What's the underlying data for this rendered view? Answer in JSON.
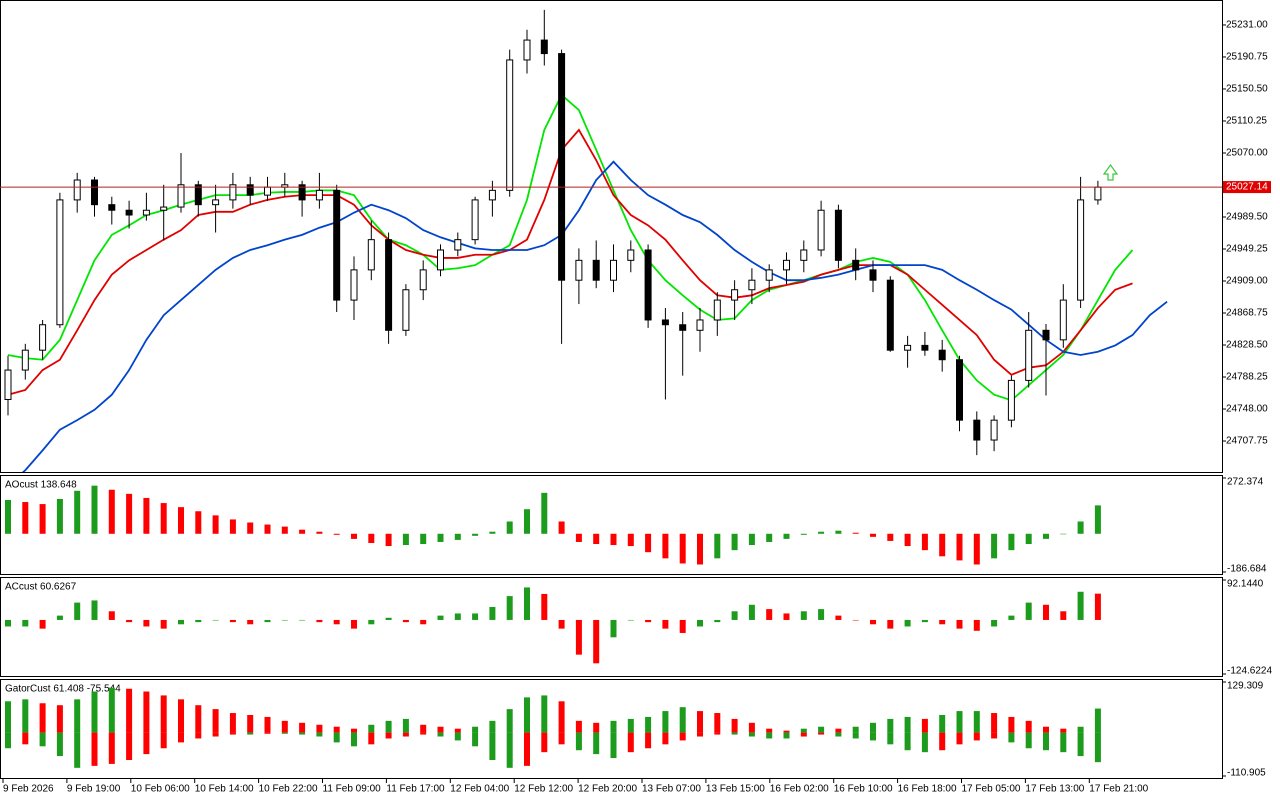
{
  "price_chart": {
    "type": "candlestick",
    "candles": [
      [
        24760,
        24815,
        24740,
        24797
      ],
      [
        24797,
        24830,
        24785,
        24822
      ],
      [
        24822,
        24860,
        24810,
        24854
      ],
      [
        24854,
        25020,
        24850,
        25011
      ],
      [
        25011,
        25045,
        24995,
        25036
      ],
      [
        25036,
        25040,
        24990,
        25005
      ],
      [
        25005,
        25015,
        24980,
        24998
      ],
      [
        24998,
        25010,
        24975,
        24992
      ],
      [
        24992,
        25020,
        24985,
        24998
      ],
      [
        24998,
        25030,
        24960,
        25002
      ],
      [
        25002,
        25070,
        24995,
        25030
      ],
      [
        25030,
        25035,
        24990,
        25005
      ],
      [
        25005,
        25030,
        24970,
        25011
      ],
      [
        25011,
        25045,
        25000,
        25030
      ],
      [
        25030,
        25040,
        25005,
        25017
      ],
      [
        25017,
        25040,
        25010,
        25027
      ],
      [
        25027,
        25045,
        25015,
        25030
      ],
      [
        25030,
        25035,
        24990,
        25011
      ],
      [
        25011,
        25045,
        25000,
        25023
      ],
      [
        25023,
        25030,
        24870,
        24885
      ],
      [
        24885,
        24940,
        24860,
        24923
      ],
      [
        24923,
        24985,
        24910,
        24961
      ],
      [
        24961,
        24970,
        24830,
        24847
      ],
      [
        24847,
        24905,
        24840,
        24898
      ],
      [
        24898,
        24935,
        24885,
        24923
      ],
      [
        24923,
        24955,
        24915,
        24948
      ],
      [
        24948,
        24970,
        24940,
        24961
      ],
      [
        24961,
        25015,
        24955,
        25011
      ],
      [
        25011,
        25035,
        24990,
        25023
      ],
      [
        25023,
        25200,
        25015,
        25187
      ],
      [
        25187,
        25225,
        25170,
        25212
      ],
      [
        25212,
        25250,
        25180,
        25195
      ],
      [
        25195,
        25200,
        24830,
        24910
      ],
      [
        24910,
        24950,
        24880,
        24935
      ],
      [
        24935,
        24960,
        24900,
        24910
      ],
      [
        24910,
        24955,
        24895,
        24935
      ],
      [
        24935,
        24960,
        24920,
        24948
      ],
      [
        24948,
        24955,
        24850,
        24860
      ],
      [
        24860,
        24875,
        24760,
        24854
      ],
      [
        24854,
        24870,
        24790,
        24847
      ],
      [
        24847,
        24875,
        24820,
        24860
      ],
      [
        24860,
        24895,
        24840,
        24885
      ],
      [
        24885,
        24910,
        24860,
        24898
      ],
      [
        24898,
        24925,
        24880,
        24910
      ],
      [
        24910,
        24930,
        24895,
        24923
      ],
      [
        24923,
        24945,
        24905,
        24935
      ],
      [
        24935,
        24960,
        24920,
        24948
      ],
      [
        24948,
        25010,
        24940,
        24998
      ],
      [
        24998,
        25005,
        24925,
        24935
      ],
      [
        24935,
        24950,
        24910,
        24923
      ],
      [
        24923,
        24935,
        24895,
        24910
      ],
      [
        24910,
        24915,
        24820,
        24822
      ],
      [
        24822,
        24840,
        24800,
        24828
      ],
      [
        24828,
        24845,
        24815,
        24822
      ],
      [
        24822,
        24835,
        24795,
        24810
      ],
      [
        24810,
        24815,
        24720,
        24734
      ],
      [
        24734,
        24745,
        24690,
        24709
      ],
      [
        24709,
        24740,
        24695,
        24734
      ],
      [
        24734,
        24790,
        24725,
        24784
      ],
      [
        24784,
        24870,
        24775,
        24847
      ],
      [
        24847,
        24855,
        24765,
        24835
      ],
      [
        24835,
        24905,
        24825,
        24885
      ],
      [
        24885,
        25040,
        24875,
        25011
      ],
      [
        25011,
        25035,
        25005,
        25027
      ]
    ],
    "ylim": [
      24668.8,
      25262.4
    ],
    "yticks": [
      {
        "value": 25231,
        "label": "25231.00"
      },
      {
        "value": 25190.75,
        "label": "25190.75"
      },
      {
        "value": 25150.5,
        "label": "25150.50"
      },
      {
        "value": 25110.25,
        "label": "25110.25"
      },
      {
        "value": 25070,
        "label": "25070.00"
      },
      {
        "value": 24989.5,
        "label": "24989.50"
      },
      {
        "value": 24949.25,
        "label": "24949.25"
      },
      {
        "value": 24909,
        "label": "24909.00"
      },
      {
        "value": 24868.75,
        "label": "24868.75"
      },
      {
        "value": 24828.5,
        "label": "24828.50"
      },
      {
        "value": 24788.25,
        "label": "24788.25"
      },
      {
        "value": 24748,
        "label": "24748.00"
      },
      {
        "value": 24707.75,
        "label": "24707.75"
      }
    ],
    "current_price": 25027.14,
    "lines": [
      {
        "color": "#00e600",
        "values": [
          24816,
          24812,
          24810,
          24835,
          24885,
          24935,
          24967,
          24979,
          24992,
          24998,
          25005,
          25011,
          25017,
          25017,
          25017,
          25020,
          25021,
          25021,
          25023,
          25023,
          25017,
          24986,
          24961,
          24954,
          24942,
          24923,
          24925,
          24929,
          24942,
          24954,
          25011,
          25099,
          25143,
          25124,
          25074,
          25023,
          24973,
          24935,
          24910,
          24891,
          24873,
          24860,
          24862,
          24885,
          24898,
          24904,
          24910,
          24917,
          24923,
          24933,
          24938,
          24933,
          24917,
          24885,
          24847,
          24810,
          24784,
          24766,
          24759,
          24778,
          24797,
          24816,
          24847,
          24885,
          24923,
          24948
        ]
      },
      {
        "color": "#e00000",
        "values": [
          24766,
          24772,
          24797,
          24810,
          24847,
          24885,
          24917,
          24935,
          24948,
          24961,
          24973,
          24992,
          24996,
          24996,
          25005,
          25011,
          25015,
          25017,
          25017,
          25017,
          25005,
          24979,
          24961,
          24948,
          24942,
          24938,
          24938,
          24942,
          24942,
          24948,
          24961,
          25011,
          25074,
          25099,
          25061,
          25017,
          24992,
          24979,
          24961,
          24935,
          24910,
          24891,
          24888,
          24891,
          24900,
          24904,
          24908,
          24917,
          24923,
          24929,
          24929,
          24929,
          24917,
          24898,
          24879,
          24860,
          24841,
          24810,
          24791,
          24800,
          24803,
          24820,
          24847,
          24875,
          24898,
          24906
        ]
      },
      {
        "color": "#0044cc",
        "values": [
          24652,
          24671,
          24696,
          24722,
          24734,
          24747,
          24766,
          24797,
          24835,
          24866,
          24885,
          24904,
          24923,
          24938,
          24948,
          24954,
          24961,
          24967,
          24976,
          24983,
          24995,
          25005,
          24998,
          24988,
          24973,
          24964,
          24957,
          24950,
          24948,
          24948,
          24948,
          24954,
          24967,
          24998,
          25036,
          25059,
          25036,
          25017,
          25005,
          24992,
          24983,
          24967,
          24948,
          24933,
          24920,
          24910,
          24910,
          24913,
          24917,
          24923,
          24929,
          24929,
          24929,
          24929,
          24923,
          24910,
          24898,
          24885,
          24873,
          24854,
          24835,
          24820,
          24816,
          24820,
          24828,
          24841,
          24866,
          24883
        ]
      }
    ]
  },
  "panels": [
    {
      "type": "histogram",
      "title": "AOcust 138.648",
      "ylim": [
        -186.684,
        272.374
      ],
      "yticks": [
        272.374,
        -186.684
      ],
      "values": [
        165,
        155,
        145,
        170,
        210,
        235,
        215,
        195,
        175,
        150,
        130,
        110,
        90,
        70,
        55,
        45,
        35,
        20,
        10,
        -5,
        -25,
        -45,
        -60,
        -55,
        -50,
        -40,
        -30,
        -10,
        10,
        60,
        120,
        200,
        60,
        -40,
        -50,
        -55,
        -60,
        -90,
        -120,
        -145,
        -150,
        -120,
        -80,
        -55,
        -40,
        -25,
        -5,
        10,
        15,
        5,
        -15,
        -35,
        -60,
        -80,
        -110,
        -130,
        -150,
        -120,
        -80,
        -50,
        -25,
        0,
        60,
        138.648
      ]
    },
    {
      "type": "histogram",
      "title": "ACcust 60.6267",
      "ylim": [
        -124.6224,
        92.144
      ],
      "yticks": [
        {
          "value": 92.144,
          "label": "92.1440"
        },
        -124.6224
      ],
      "values": [
        -15,
        -15,
        -20,
        10,
        40,
        45,
        20,
        -5,
        -15,
        -20,
        -10,
        -5,
        0,
        -5,
        -10,
        -5,
        0,
        0,
        -5,
        -10,
        -20,
        -10,
        5,
        -5,
        -10,
        10,
        15,
        15,
        30,
        55,
        75,
        60,
        -20,
        -80,
        -100,
        -40,
        0,
        -5,
        -20,
        -30,
        -15,
        -5,
        20,
        35,
        25,
        15,
        20,
        25,
        10,
        0,
        -10,
        -20,
        -15,
        -5,
        -10,
        -20,
        -25,
        -15,
        10,
        40,
        35,
        20,
        65,
        60.6267
      ]
    },
    {
      "type": "gator",
      "title": "GatorCust 61.408 -75.544",
      "ylim": [
        -110.905,
        129.309
      ],
      "yticks": [
        129.309,
        -110.905
      ],
      "series": [
        {
          "values": [
            80,
            85,
            75,
            70,
            85,
            105,
            115,
            112,
            105,
            95,
            85,
            70,
            60,
            50,
            45,
            40,
            30,
            25,
            20,
            15,
            10,
            20,
            30,
            35,
            20,
            15,
            10,
            15,
            30,
            60,
            90,
            95,
            80,
            30,
            25,
            30,
            35,
            40,
            55,
            65,
            55,
            50,
            35,
            25,
            10,
            5,
            10,
            15,
            10,
            15,
            25,
            35,
            40,
            35,
            45,
            55,
            55,
            50,
            40,
            30,
            15,
            10,
            15,
            61.408
          ]
        },
        {
          "values": [
            -40,
            -30,
            -35,
            -60,
            -90,
            -85,
            -80,
            -70,
            -55,
            -40,
            -25,
            -15,
            -10,
            -5,
            -5,
            -3,
            -3,
            -5,
            -10,
            -25,
            -35,
            -30,
            -15,
            -10,
            -5,
            -10,
            -20,
            -35,
            -70,
            -90,
            -85,
            -50,
            -30,
            -45,
            -55,
            -65,
            -50,
            -40,
            -30,
            -20,
            -10,
            -5,
            -5,
            -10,
            -15,
            -15,
            -10,
            -5,
            -10,
            -15,
            -20,
            -30,
            -45,
            -50,
            -45,
            -30,
            -20,
            -15,
            -25,
            -40,
            -45,
            -50,
            -60,
            -75.544
          ]
        }
      ]
    }
  ],
  "time_labels": [
    "9 Feb 2026",
    "9 Feb 19:00",
    "10 Feb 06:00",
    "10 Feb 14:00",
    "10 Feb 22:00",
    "11 Feb 09:00",
    "11 Feb 17:00",
    "12 Feb 04:00",
    "12 Feb 12:00",
    "12 Feb 20:00",
    "13 Feb 07:00",
    "13 Feb 15:00",
    "16 Feb 02:00",
    "16 Feb 10:00",
    "16 Feb 18:00",
    "17 Feb 05:00",
    "17 Feb 13:00",
    "17 Feb 21:00"
  ]
}
